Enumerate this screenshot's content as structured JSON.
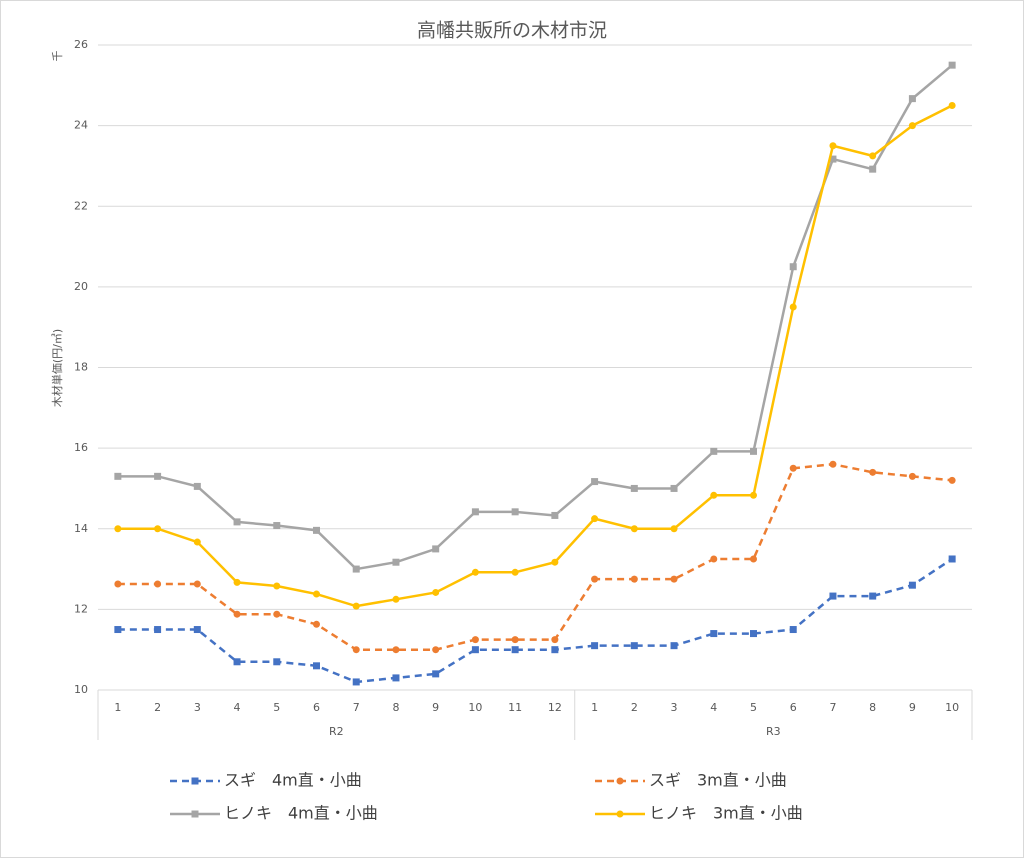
{
  "chart_data": {
    "type": "line",
    "title": "高幡共販所の木材市況",
    "y_unit": "千",
    "y_label": "木材単価(円/㎥)",
    "category_groups": [
      {
        "label": "R2",
        "categories": [
          "1",
          "2",
          "3",
          "4",
          "5",
          "6",
          "7",
          "8",
          "9",
          "10",
          "11",
          "12"
        ]
      },
      {
        "label": "R3",
        "categories": [
          "1",
          "2",
          "3",
          "4",
          "5",
          "6",
          "7",
          "8",
          "9",
          "10"
        ]
      }
    ],
    "ylim": [
      10,
      26
    ],
    "yticks": [
      10,
      12,
      14,
      16,
      18,
      20,
      22,
      24,
      26
    ],
    "grid": true,
    "series": [
      {
        "name": "スギ　4m直・小曲",
        "color": "#4472c4",
        "dash": true,
        "marker": "square",
        "values": [
          11.5,
          11.5,
          11.5,
          10.7,
          10.7,
          10.6,
          10.2,
          10.3,
          10.4,
          11.0,
          11.0,
          11.0,
          11.1,
          11.1,
          11.1,
          11.4,
          11.4,
          11.5,
          12.33,
          12.33,
          12.6,
          13.25
        ]
      },
      {
        "name": "スギ　3m直・小曲",
        "color": "#ed7d31",
        "dash": true,
        "marker": "circle",
        "values": [
          12.63,
          12.63,
          12.63,
          11.88,
          11.88,
          11.63,
          11.0,
          11.0,
          11.0,
          11.25,
          11.25,
          11.25,
          12.75,
          12.75,
          12.75,
          13.25,
          13.25,
          15.5,
          15.6,
          15.4,
          15.3,
          15.2
        ]
      },
      {
        "name": "ヒノキ　4m直・小曲",
        "color": "#a5a5a5",
        "dash": false,
        "marker": "square",
        "values": [
          15.3,
          15.3,
          15.05,
          14.17,
          14.08,
          13.96,
          13.0,
          13.17,
          13.5,
          14.42,
          14.42,
          14.33,
          15.17,
          15.0,
          15.0,
          15.92,
          15.92,
          20.5,
          23.17,
          22.92,
          24.67,
          25.5
        ]
      },
      {
        "name": "ヒノキ　3m直・小曲",
        "color": "#ffc000",
        "dash": false,
        "marker": "circle",
        "values": [
          14.0,
          14.0,
          13.67,
          12.67,
          12.58,
          12.38,
          12.08,
          12.25,
          12.42,
          12.92,
          12.92,
          13.17,
          14.25,
          14.0,
          14.0,
          14.83,
          14.83,
          19.5,
          23.5,
          23.25,
          24.0,
          24.5
        ]
      }
    ]
  }
}
